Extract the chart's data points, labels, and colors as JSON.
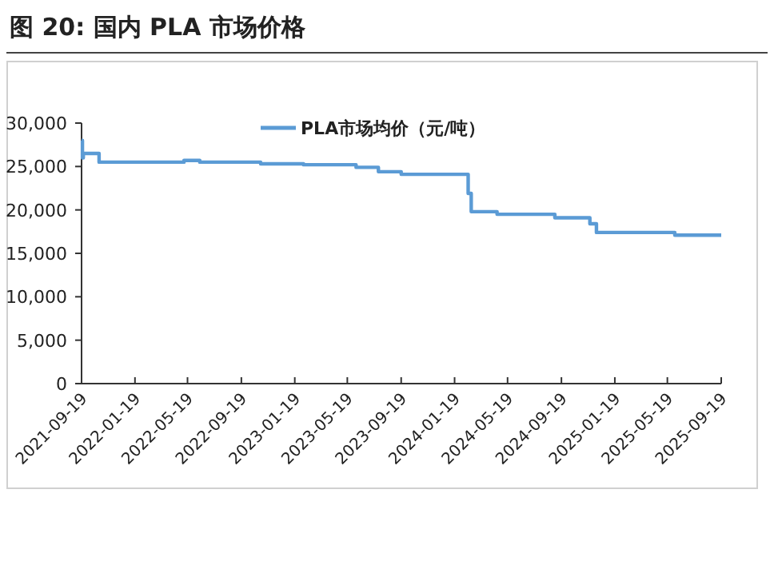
{
  "chart_data": {
    "type": "step",
    "title": "图 20:  国内 PLA 市场价格",
    "x": [
      "2021-09-19",
      "2021-09-21",
      "2021-09-23",
      "2021-10-29",
      "2022-05-11",
      "2022-06-16",
      "2022-11-02",
      "2023-02-08",
      "2023-06-08",
      "2023-07-29",
      "2023-09-19",
      "2024-02-19",
      "2024-02-26",
      "2024-04-25",
      "2024-09-04",
      "2024-11-23",
      "2024-12-08",
      "2025-06-05",
      "2025-09-19"
    ],
    "series": [
      {
        "name": "PLA市场均价（元/吨）",
        "color": "#5b9bd5",
        "values": [
          28000,
          26000,
          26500,
          25500,
          25700,
          25500,
          25300,
          25200,
          24900,
          24400,
          24100,
          21900,
          19800,
          19500,
          19100,
          18400,
          17400,
          17100,
          17100
        ]
      }
    ],
    "xlim": [
      "2021-09-19",
      "2025-09-19"
    ],
    "xticks": [
      "2021-09-19",
      "2022-01-19",
      "2022-05-19",
      "2022-09-19",
      "2023-01-19",
      "2023-05-19",
      "2023-09-19",
      "2024-01-19",
      "2024-05-19",
      "2024-09-19",
      "2025-01-19",
      "2025-05-19",
      "2025-09-19"
    ],
    "ylim": [
      0,
      30000
    ],
    "yticks": [
      {
        "value": 0,
        "label": "0"
      },
      {
        "value": 5000,
        "label": "5,000"
      },
      {
        "value": 10000,
        "label": "10,000"
      },
      {
        "value": 15000,
        "label": "15,000"
      },
      {
        "value": 20000,
        "label": "20,000"
      },
      {
        "value": 25000,
        "label": "25,000"
      },
      {
        "value": 30000,
        "label": "30,000"
      }
    ],
    "grid": false,
    "legend": "top",
    "line_style": "solid",
    "marker": "none"
  }
}
